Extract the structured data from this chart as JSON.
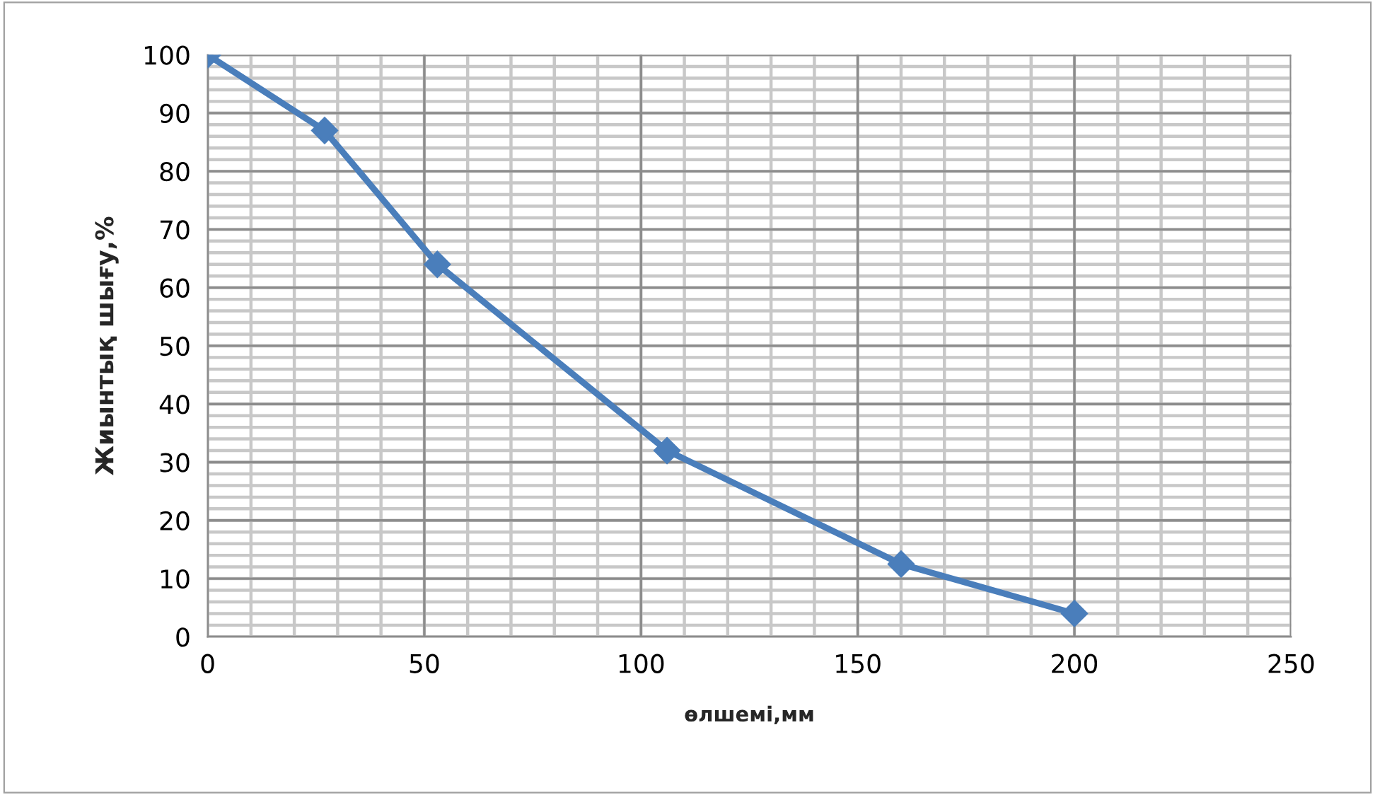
{
  "chart_data": {
    "type": "line",
    "xlabel": "өлшемі,мм",
    "ylabel": "Жиынтық шығу,%",
    "x": [
      0,
      27,
      53,
      106,
      160,
      200
    ],
    "series": [
      {
        "color": "#4a7ebb",
        "values": [
          100,
          87,
          64,
          32,
          12.5,
          4
        ]
      }
    ],
    "xlim": [
      0,
      250
    ],
    "xticks": [
      0,
      50,
      100,
      150,
      200,
      250
    ],
    "ylim": [
      0,
      100
    ],
    "yticks": [
      0,
      10,
      20,
      30,
      40,
      50,
      60,
      70,
      80,
      90,
      100
    ],
    "grid": true,
    "marker": "diamond",
    "line_style": "solid",
    "legend": false
  }
}
